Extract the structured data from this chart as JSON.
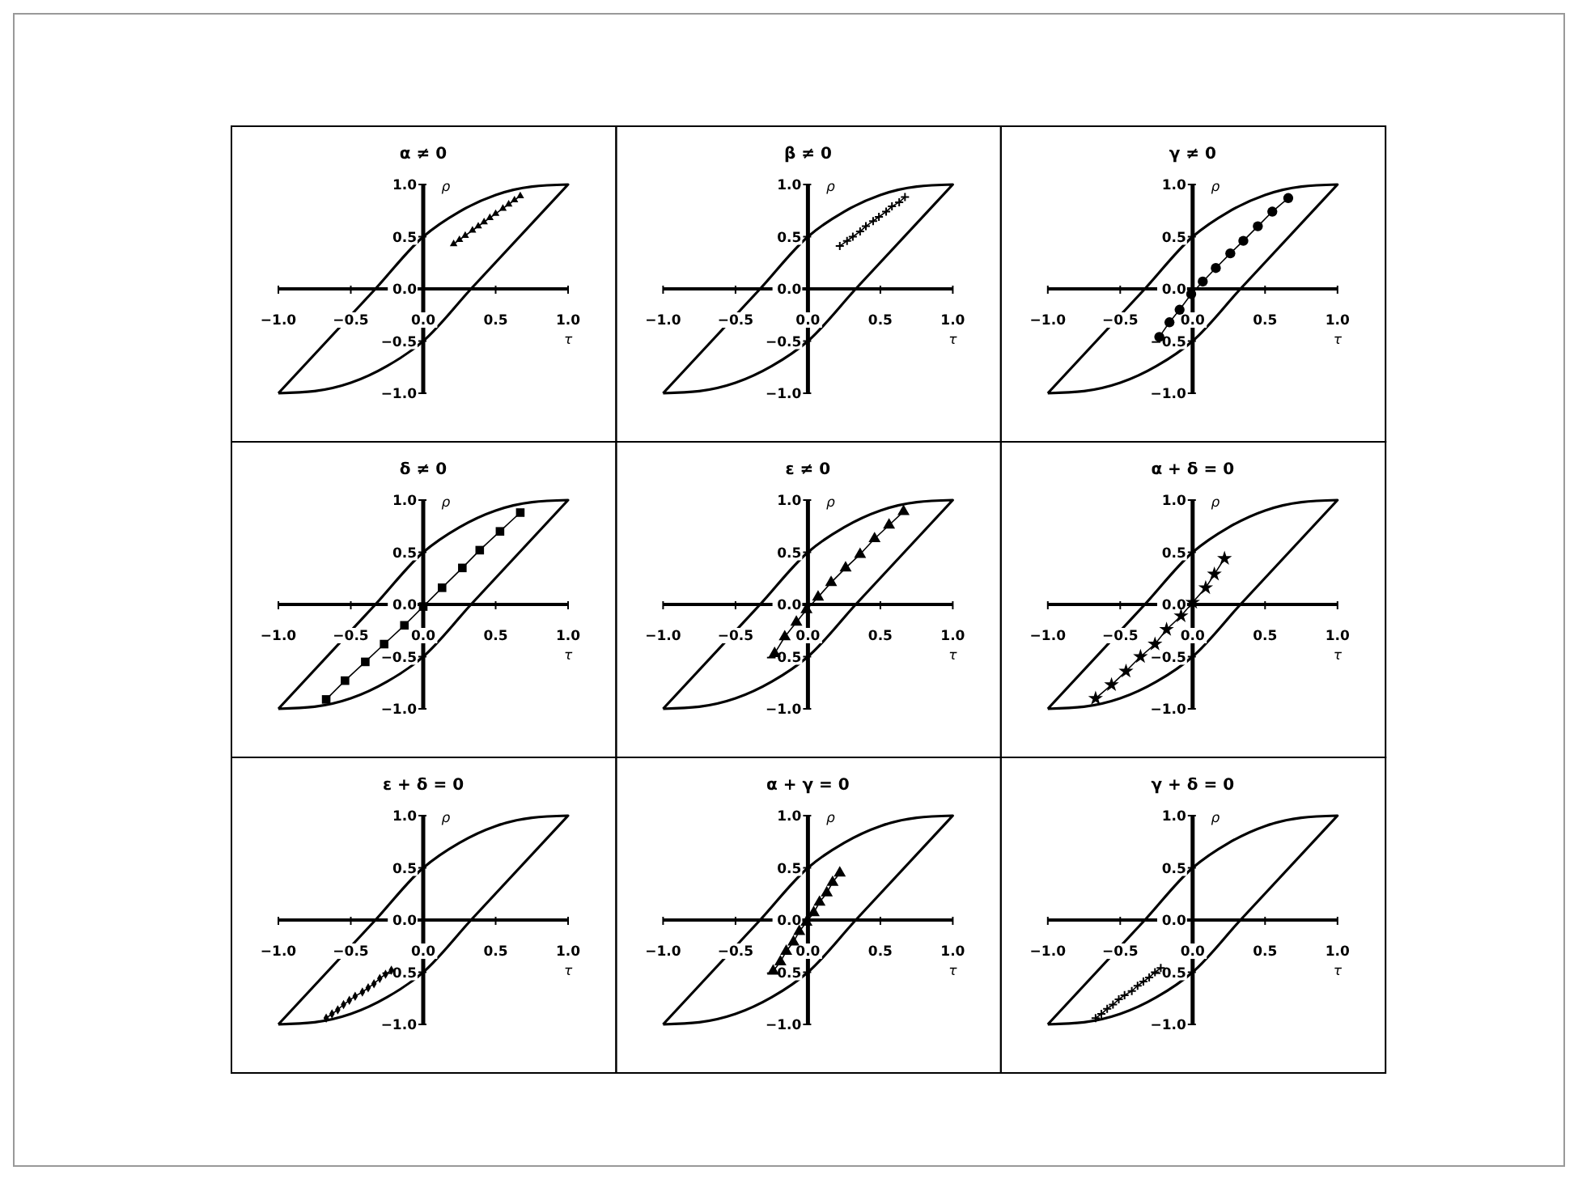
{
  "chart_data": [
    {
      "type": "line",
      "title": "α ≠ 0",
      "xlabel": "τ",
      "ylabel": "ρ",
      "xlim": [
        -1,
        1
      ],
      "ylim": [
        -1,
        1
      ],
      "xticks": [
        {
          "value": -1,
          "label": "−1.0"
        },
        {
          "value": -0.5,
          "label": "−0.5"
        },
        {
          "value": 0,
          "label": "0.0"
        },
        {
          "value": 0.5,
          "label": "0.5"
        },
        {
          "value": 1,
          "label": "1.0"
        }
      ],
      "yticks": [
        {
          "value": -1,
          "label": "−1.0"
        },
        {
          "value": -0.5,
          "label": "−0.5"
        },
        {
          "value": 0,
          "label": "0.0"
        },
        {
          "value": 0.5,
          "label": "0.5"
        },
        {
          "value": 1,
          "label": "1.0"
        }
      ],
      "series": [
        {
          "color": "#000000",
          "marker": "triangle",
          "x": [
            0.21,
            0.25,
            0.29,
            0.34,
            0.38,
            0.42,
            0.46,
            0.5,
            0.55,
            0.59,
            0.63,
            0.67
          ],
          "values": [
            0.43,
            0.47,
            0.51,
            0.56,
            0.6,
            0.64,
            0.68,
            0.72,
            0.77,
            0.81,
            0.85,
            0.89
          ]
        }
      ]
    },
    {
      "type": "line",
      "title": "β ≠ 0",
      "xlabel": "τ",
      "ylabel": "ρ",
      "xlim": [
        -1,
        1
      ],
      "ylim": [
        -1,
        1
      ],
      "xticks": [
        {
          "value": -1,
          "label": "−1.0"
        },
        {
          "value": -0.5,
          "label": "−0.5"
        },
        {
          "value": 0,
          "label": "0.0"
        },
        {
          "value": 0.5,
          "label": "0.5"
        },
        {
          "value": 1,
          "label": "1.0"
        }
      ],
      "yticks": [
        {
          "value": -1,
          "label": "−1.0"
        },
        {
          "value": -0.5,
          "label": "−0.5"
        },
        {
          "value": 0,
          "label": "0.0"
        },
        {
          "value": 0.5,
          "label": "0.5"
        },
        {
          "value": 1,
          "label": "1.0"
        }
      ],
      "series": [
        {
          "color": "#000000",
          "marker": "cross",
          "x": [
            0.22,
            0.27,
            0.31,
            0.36,
            0.4,
            0.45,
            0.49,
            0.54,
            0.58,
            0.63,
            0.67
          ],
          "values": [
            0.41,
            0.46,
            0.5,
            0.55,
            0.6,
            0.65,
            0.69,
            0.74,
            0.79,
            0.83,
            0.88
          ]
        }
      ]
    },
    {
      "type": "line",
      "title": "γ ≠ 0",
      "xlabel": "τ",
      "ylabel": "ρ",
      "xlim": [
        -1,
        1
      ],
      "ylim": [
        -1,
        1
      ],
      "xticks": [
        {
          "value": -1,
          "label": "−1.0"
        },
        {
          "value": -0.5,
          "label": "−0.5"
        },
        {
          "value": 0,
          "label": "0.0"
        },
        {
          "value": 0.5,
          "label": "0.5"
        },
        {
          "value": 1,
          "label": "1.0"
        }
      ],
      "yticks": [
        {
          "value": -1,
          "label": "−1.0"
        },
        {
          "value": -0.5,
          "label": "−0.5"
        },
        {
          "value": 0,
          "label": "0.0"
        },
        {
          "value": 0.5,
          "label": "0.5"
        },
        {
          "value": 1,
          "label": "1.0"
        }
      ],
      "series": [
        {
          "color": "#000000",
          "marker": "circle",
          "x": [
            -0.23,
            -0.16,
            -0.09,
            -0.01,
            0.07,
            0.16,
            0.26,
            0.35,
            0.45,
            0.55,
            0.66
          ],
          "values": [
            -0.46,
            -0.32,
            -0.2,
            -0.05,
            0.07,
            0.2,
            0.34,
            0.46,
            0.6,
            0.74,
            0.87
          ]
        }
      ]
    },
    {
      "type": "line",
      "title": "δ ≠ 0",
      "xlabel": "τ",
      "ylabel": "ρ",
      "xlim": [
        -1,
        1
      ],
      "ylim": [
        -1,
        1
      ],
      "xticks": [
        {
          "value": -1,
          "label": "−1.0"
        },
        {
          "value": -0.5,
          "label": "−0.5"
        },
        {
          "value": 0,
          "label": "0.0"
        },
        {
          "value": 0.5,
          "label": "0.5"
        },
        {
          "value": 1,
          "label": "1.0"
        }
      ],
      "yticks": [
        {
          "value": -1,
          "label": "−1.0"
        },
        {
          "value": -0.5,
          "label": "−0.5"
        },
        {
          "value": 0,
          "label": "0.0"
        },
        {
          "value": 0.5,
          "label": "0.5"
        },
        {
          "value": 1,
          "label": "1.0"
        }
      ],
      "series": [
        {
          "color": "#000000",
          "marker": "square",
          "x": [
            -0.67,
            -0.54,
            -0.4,
            -0.27,
            -0.13,
            0,
            0.13,
            0.27,
            0.39,
            0.53,
            0.67
          ],
          "values": [
            -0.91,
            -0.73,
            -0.55,
            -0.38,
            -0.2,
            -0.02,
            0.16,
            0.35,
            0.52,
            0.7,
            0.88
          ]
        }
      ]
    },
    {
      "type": "line",
      "title": "ε ≠ 0",
      "xlabel": "τ",
      "ylabel": "ρ",
      "xlim": [
        -1,
        1
      ],
      "ylim": [
        -1,
        1
      ],
      "xticks": [
        {
          "value": -1,
          "label": "−1.0"
        },
        {
          "value": -0.5,
          "label": "−0.5"
        },
        {
          "value": 0,
          "label": "0.0"
        },
        {
          "value": 0.5,
          "label": "0.5"
        },
        {
          "value": 1,
          "label": "1.0"
        }
      ],
      "yticks": [
        {
          "value": -1,
          "label": "−1.0"
        },
        {
          "value": -0.5,
          "label": "−0.5"
        },
        {
          "value": 0,
          "label": "0.0"
        },
        {
          "value": 0.5,
          "label": "0.5"
        },
        {
          "value": 1,
          "label": "1.0"
        }
      ],
      "series": [
        {
          "color": "#000000",
          "marker": "triangle",
          "x": [
            -0.23,
            -0.16,
            -0.08,
            -0.01,
            0.07,
            0.16,
            0.26,
            0.36,
            0.46,
            0.56,
            0.66
          ],
          "values": [
            -0.47,
            -0.31,
            -0.17,
            -0.05,
            0.07,
            0.21,
            0.35,
            0.48,
            0.63,
            0.76,
            0.89
          ]
        }
      ]
    },
    {
      "type": "line",
      "title": "α + δ = 0",
      "xlabel": "τ",
      "ylabel": "ρ",
      "xlim": [
        -1,
        1
      ],
      "ylim": [
        -1,
        1
      ],
      "xticks": [
        {
          "value": -1,
          "label": "−1.0"
        },
        {
          "value": -0.5,
          "label": "−0.5"
        },
        {
          "value": 0,
          "label": "0.0"
        },
        {
          "value": 0.5,
          "label": "0.5"
        },
        {
          "value": 1,
          "label": "1.0"
        }
      ],
      "yticks": [
        {
          "value": -1,
          "label": "−1.0"
        },
        {
          "value": -0.5,
          "label": "−0.5"
        },
        {
          "value": 0,
          "label": "0.0"
        },
        {
          "value": 0.5,
          "label": "0.5"
        },
        {
          "value": 1,
          "label": "1.0"
        }
      ],
      "series": [
        {
          "color": "#000000",
          "marker": "star",
          "x": [
            -0.67,
            -0.56,
            -0.46,
            -0.36,
            -0.26,
            -0.18,
            -0.08,
            0,
            0.09,
            0.15,
            0.22
          ],
          "values": [
            -0.9,
            -0.77,
            -0.64,
            -0.5,
            -0.38,
            -0.24,
            -0.11,
            0.02,
            0.16,
            0.29,
            0.44
          ]
        }
      ]
    },
    {
      "type": "line",
      "title": "ε + δ = 0",
      "xlabel": "τ",
      "ylabel": "ρ",
      "xlim": [
        -1,
        1
      ],
      "ylim": [
        -1,
        1
      ],
      "xticks": [
        {
          "value": -1,
          "label": "−1.0"
        },
        {
          "value": -0.5,
          "label": "−0.5"
        },
        {
          "value": 0,
          "label": "0.0"
        },
        {
          "value": 0.5,
          "label": "0.5"
        },
        {
          "value": 1,
          "label": "1.0"
        }
      ],
      "yticks": [
        {
          "value": -1,
          "label": "−1.0"
        },
        {
          "value": -0.5,
          "label": "−0.5"
        },
        {
          "value": 0,
          "label": "0.0"
        },
        {
          "value": 0.5,
          "label": "0.5"
        },
        {
          "value": 1,
          "label": "1.0"
        }
      ],
      "series": [
        {
          "color": "#000000",
          "marker": "diamond",
          "x": [
            -0.67,
            -0.63,
            -0.59,
            -0.55,
            -0.51,
            -0.47,
            -0.42,
            -0.38,
            -0.34,
            -0.3,
            -0.26,
            -0.22
          ],
          "values": [
            -0.94,
            -0.9,
            -0.86,
            -0.81,
            -0.77,
            -0.73,
            -0.69,
            -0.65,
            -0.61,
            -0.56,
            -0.52,
            -0.48
          ]
        }
      ]
    },
    {
      "type": "line",
      "title": "α + γ = 0",
      "xlabel": "τ",
      "ylabel": "ρ",
      "xlim": [
        -1,
        1
      ],
      "ylim": [
        -1,
        1
      ],
      "xticks": [
        {
          "value": -1,
          "label": "−1.0"
        },
        {
          "value": -0.5,
          "label": "−0.5"
        },
        {
          "value": 0,
          "label": "0.0"
        },
        {
          "value": 0.5,
          "label": "0.5"
        },
        {
          "value": 1,
          "label": "1.0"
        }
      ],
      "yticks": [
        {
          "value": -1,
          "label": "−1.0"
        },
        {
          "value": -0.5,
          "label": "−0.5"
        },
        {
          "value": 0,
          "label": "0.0"
        },
        {
          "value": 0.5,
          "label": "0.5"
        },
        {
          "value": 1,
          "label": "1.0"
        }
      ],
      "series": [
        {
          "color": "#000000",
          "marker": "triangle",
          "x": [
            -0.24,
            -0.19,
            -0.15,
            -0.1,
            -0.06,
            -0.01,
            0.04,
            0.08,
            0.13,
            0.17,
            0.22
          ],
          "values": [
            -0.49,
            -0.4,
            -0.3,
            -0.21,
            -0.11,
            -0.02,
            0.07,
            0.17,
            0.26,
            0.36,
            0.45
          ]
        }
      ]
    },
    {
      "type": "line",
      "title": "γ + δ = 0",
      "xlabel": "τ",
      "ylabel": "ρ",
      "xlim": [
        -1,
        1
      ],
      "ylim": [
        -1,
        1
      ],
      "xticks": [
        {
          "value": -1,
          "label": "−1.0"
        },
        {
          "value": -0.5,
          "label": "−0.5"
        },
        {
          "value": 0,
          "label": "0.0"
        },
        {
          "value": 0.5,
          "label": "0.5"
        },
        {
          "value": 1,
          "label": "1.0"
        }
      ],
      "yticks": [
        {
          "value": -1,
          "label": "−1.0"
        },
        {
          "value": -0.5,
          "label": "−0.5"
        },
        {
          "value": 0,
          "label": "0.0"
        },
        {
          "value": 0.5,
          "label": "0.5"
        },
        {
          "value": 1,
          "label": "1.0"
        }
      ],
      "series": [
        {
          "color": "#000000",
          "marker": "cross",
          "x": [
            -0.67,
            -0.63,
            -0.59,
            -0.55,
            -0.51,
            -0.47,
            -0.42,
            -0.38,
            -0.34,
            -0.3,
            -0.26,
            -0.22
          ],
          "values": [
            -0.94,
            -0.9,
            -0.85,
            -0.81,
            -0.76,
            -0.72,
            -0.68,
            -0.63,
            -0.59,
            -0.55,
            -0.5,
            -0.46
          ]
        }
      ]
    }
  ]
}
